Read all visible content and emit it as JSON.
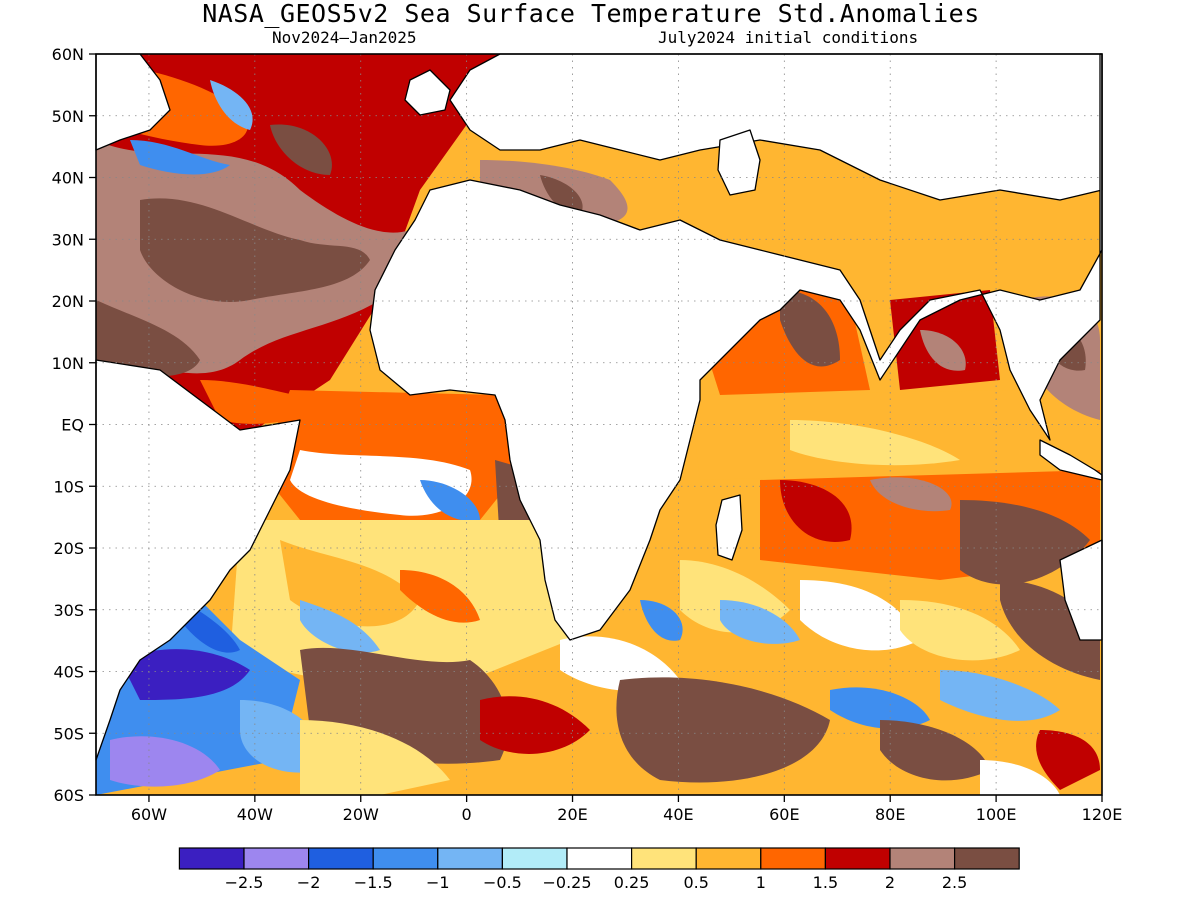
{
  "title": "NASA_GEOS5v2 Sea Surface Temperature Std.Anomalies",
  "subtitle_left": "Nov2024–Jan2025",
  "subtitle_right": "July2024 initial conditions",
  "map": {
    "projection": "lat-lon",
    "lon_range": [
      -70,
      120
    ],
    "lat_range": [
      -60,
      60
    ],
    "lat_ticks": [
      "60N",
      "50N",
      "40N",
      "30N",
      "20N",
      "10N",
      "EQ",
      "10S",
      "20S",
      "30S",
      "40S",
      "50S",
      "60S"
    ],
    "lon_ticks": [
      "60W",
      "40W",
      "20W",
      "0",
      "20E",
      "40E",
      "60E",
      "80E",
      "100E",
      "120E"
    ],
    "grid": "dotted"
  },
  "legend": {
    "labels": [
      "−2.5",
      "−2",
      "−1.5",
      "−1",
      "−0.5",
      "−0.25",
      "0.25",
      "0.5",
      "1",
      "1.5",
      "2",
      "2.5"
    ],
    "colors": [
      "#3b1fc1",
      "#9d86ef",
      "#1f5fe0",
      "#3f8eef",
      "#74b5f4",
      "#b2ecf8",
      "#ffffff",
      "#ffe37a",
      "#ffb631",
      "#ff6600",
      "#c00000",
      "#b38378",
      "#7a4e42"
    ]
  },
  "colors": {
    "land": "#ffffff",
    "coast": "#000000"
  }
}
